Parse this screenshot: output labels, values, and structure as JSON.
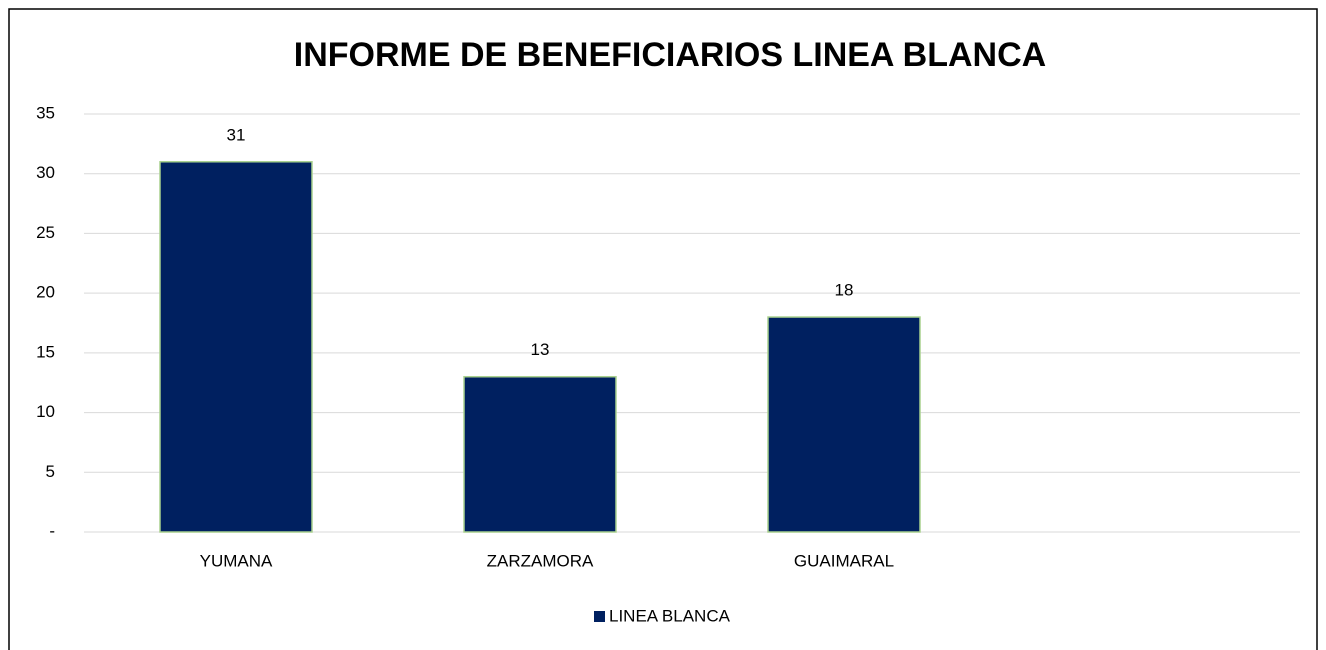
{
  "chart_data": {
    "type": "bar",
    "title": "INFORME DE BENEFICIARIOS LINEA BLANCA",
    "categories": [
      "YUMANA",
      "ZARZAMORA",
      "GUAIMARAL",
      null
    ],
    "series": [
      {
        "name": "LINEA BLANCA",
        "color": "#002060",
        "values": [
          31,
          13,
          18,
          null
        ]
      }
    ],
    "ylim": [
      0,
      35
    ],
    "yticks": [
      {
        "value": 0,
        "label": "-"
      },
      5,
      10,
      15,
      20,
      25,
      30,
      35
    ],
    "grid": true,
    "legend": "bottom"
  }
}
